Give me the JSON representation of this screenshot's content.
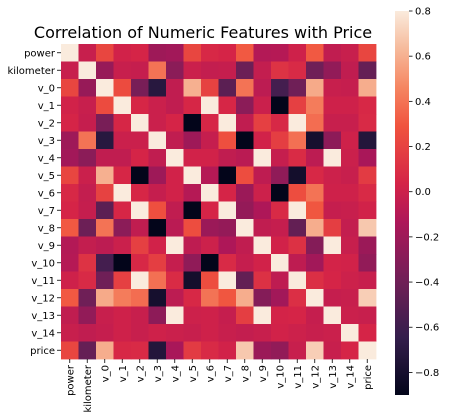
{
  "chart_data": {
    "type": "heatmap",
    "title": "Correlation of Numeric Features with Price",
    "rows": [
      "power",
      "kilometer",
      "v_0",
      "v_1",
      "v_2",
      "v_3",
      "v_4",
      "v_5",
      "v_6",
      "v_7",
      "v_8",
      "v_9",
      "v_10",
      "v_11",
      "v_12",
      "v_13",
      "v_14",
      "price"
    ],
    "cols": [
      "power",
      "kilometer",
      "v_0",
      "v_1",
      "v_2",
      "v_3",
      "v_4",
      "v_5",
      "v_6",
      "v_7",
      "v_8",
      "v_9",
      "v_10",
      "v_11",
      "v_12",
      "v_13",
      "v_14",
      "price"
    ],
    "colorbar": {
      "min": -0.9,
      "max": 0.8,
      "ticks": [
        "0.8",
        "0.6",
        "0.4",
        "0.2",
        "0.0",
        "−0.2",
        "−0.4",
        "−0.6",
        "−0.8"
      ],
      "tick_values": [
        0.8,
        0.6,
        0.4,
        0.2,
        0.0,
        -0.2,
        -0.4,
        -0.6,
        -0.8
      ]
    },
    "matrix": [
      [
        1.0,
        -0.02,
        0.22,
        0.02,
        0.04,
        -0.2,
        -0.18,
        0.22,
        0.06,
        0.04,
        0.31,
        -0.11,
        -0.1,
        0.01,
        0.31,
        -0.05,
        -0.02,
        0.22
      ],
      [
        -0.02,
        1.0,
        -0.23,
        -0.02,
        -0.03,
        0.4,
        -0.28,
        -0.01,
        -0.04,
        -0.03,
        -0.41,
        -0.04,
        0.12,
        0.07,
        -0.4,
        -0.25,
        -0.05,
        -0.44
      ],
      [
        0.22,
        -0.23,
        1.0,
        0.25,
        -0.36,
        -0.71,
        -0.05,
        0.6,
        0.2,
        -0.48,
        0.4,
        -0.07,
        -0.58,
        -0.4,
        0.58,
        -0.02,
        -0.03,
        0.59
      ],
      [
        0.02,
        -0.02,
        0.25,
        1.0,
        0.05,
        -0.01,
        -0.05,
        0.05,
        0.9,
        0.05,
        -0.28,
        -0.01,
        -0.92,
        0.19,
        0.43,
        0.01,
        0.01,
        0.06
      ],
      [
        0.04,
        -0.03,
        -0.36,
        0.05,
        1.0,
        -0.01,
        0.04,
        -0.9,
        0.05,
        0.81,
        -0.05,
        0.19,
        0.06,
        0.83,
        0.38,
        -0.02,
        -0.02,
        0.07
      ],
      [
        -0.2,
        0.4,
        -0.71,
        -0.01,
        -0.01,
        1.0,
        -0.05,
        -0.2,
        -0.03,
        0.27,
        -0.93,
        0.02,
        0.18,
        0.39,
        -0.8,
        -0.27,
        0.01,
        -0.73
      ],
      [
        -0.18,
        -0.28,
        -0.05,
        -0.05,
        0.04,
        -0.05,
        1.0,
        0.02,
        0.02,
        -0.05,
        -0.08,
        0.96,
        -0.03,
        0.08,
        -0.07,
        0.94,
        -0.01,
        -0.15
      ],
      [
        0.22,
        -0.01,
        0.6,
        0.05,
        -0.9,
        -0.2,
        0.02,
        1.0,
        -0.1,
        -0.9,
        0.26,
        -0.06,
        -0.26,
        -0.81,
        0.06,
        0.0,
        -0.02,
        0.16
      ],
      [
        0.06,
        -0.04,
        0.2,
        0.9,
        0.05,
        -0.03,
        0.02,
        -0.1,
        1.0,
        0.04,
        -0.21,
        0.0,
        -0.92,
        0.26,
        0.4,
        0.01,
        0.01,
        0.07
      ],
      [
        0.04,
        -0.03,
        -0.48,
        0.05,
        0.81,
        0.27,
        -0.05,
        -0.9,
        0.04,
        1.0,
        -0.24,
        -0.13,
        0.07,
        0.83,
        0.3,
        -0.03,
        -0.02,
        0.02
      ],
      [
        0.31,
        -0.41,
        0.4,
        -0.28,
        -0.05,
        -0.93,
        -0.08,
        0.26,
        -0.21,
        -0.24,
        1.0,
        -0.05,
        -0.03,
        -0.45,
        0.59,
        0.18,
        -0.04,
        0.68
      ],
      [
        -0.11,
        -0.04,
        -0.07,
        -0.01,
        0.19,
        0.02,
        0.96,
        -0.06,
        0.0,
        -0.13,
        -0.05,
        1.0,
        0.02,
        0.11,
        -0.31,
        0.9,
        -0.02,
        -0.21
      ],
      [
        -0.1,
        0.12,
        -0.58,
        -0.92,
        0.06,
        0.18,
        -0.03,
        -0.26,
        -0.92,
        0.07,
        -0.03,
        0.02,
        1.0,
        -0.06,
        -0.18,
        0.03,
        0.02,
        -0.25
      ],
      [
        0.01,
        0.07,
        -0.4,
        0.19,
        0.83,
        0.39,
        0.08,
        -0.81,
        0.26,
        0.83,
        -0.45,
        0.11,
        -0.06,
        1.0,
        0.1,
        0.04,
        0.0,
        -0.02
      ],
      [
        0.31,
        -0.4,
        0.58,
        0.43,
        0.38,
        -0.8,
        -0.07,
        0.06,
        0.4,
        0.3,
        0.59,
        -0.31,
        -0.18,
        0.1,
        1.0,
        -0.03,
        -0.02,
        0.7
      ],
      [
        -0.05,
        -0.25,
        -0.02,
        0.01,
        -0.02,
        -0.27,
        0.94,
        0.0,
        0.01,
        -0.03,
        0.18,
        0.9,
        0.03,
        0.04,
        -0.03,
        1.0,
        -0.01,
        -0.02
      ],
      [
        -0.02,
        -0.05,
        -0.03,
        0.01,
        -0.02,
        0.01,
        -0.01,
        -0.02,
        0.01,
        -0.02,
        -0.04,
        -0.02,
        0.02,
        0.0,
        -0.02,
        -0.01,
        1.0,
        0.04
      ],
      [
        0.22,
        -0.44,
        0.59,
        0.06,
        0.07,
        -0.73,
        -0.15,
        0.16,
        0.07,
        0.02,
        0.68,
        -0.21,
        -0.25,
        -0.02,
        0.7,
        -0.02,
        0.04,
        1.0
      ]
    ],
    "grid": false
  }
}
